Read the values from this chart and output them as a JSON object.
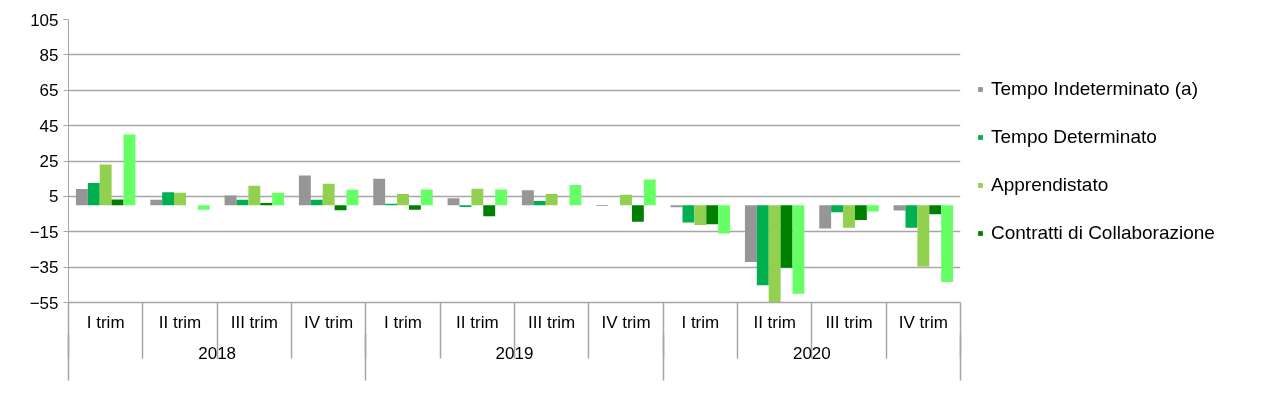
{
  "chart_data": {
    "type": "bar",
    "categories": [
      "I trim",
      "II trim",
      "III trim",
      "IV trim",
      "I trim",
      "II trim",
      "III trim",
      "IV trim",
      "I trim",
      "II trim",
      "III trim",
      "IV trim"
    ],
    "annotations": [
      "2018",
      "2019",
      "2020"
    ],
    "series": [
      {
        "name": "Tempo Indeterminato (a)",
        "color": "#969696",
        "values": [
          9.1,
          3.1,
          5.5,
          16.8,
          15,
          3.9,
          8.4,
          -0.5,
          -1.1,
          -32.1,
          -13.2,
          -3
        ]
      },
      {
        "name": "Tempo Determinato",
        "color": "#00b050",
        "values": [
          12.5,
          7.4,
          3.1,
          3.1,
          0.9,
          -1,
          2.4,
          null,
          -9.7,
          -45.3,
          -4,
          -12.8
        ]
      },
      {
        "name": "Apprendistato",
        "color": "#92d050",
        "values": [
          23,
          7,
          11,
          12.1,
          6.3,
          9.3,
          6.3,
          5.9,
          -11.2,
          -55,
          -12.8,
          -34.6
        ]
      },
      {
        "name": "Contratti di Collaborazione",
        "color": "#008000",
        "values": [
          3.3,
          0,
          1.2,
          -2.9,
          -2.5,
          -6.3,
          null,
          -9.4,
          -10.8,
          -35.3,
          -8.3,
          -5.1
        ]
      },
      {
        "name": null,
        "color": "#66ff66",
        "values": [
          40,
          -2.5,
          7,
          8.7,
          8.9,
          8.9,
          11.4,
          14.6,
          -16,
          -50,
          -3.6,
          -43.4
        ]
      }
    ],
    "ylim": [
      -55,
      105
    ],
    "yticks": [
      -55,
      -35,
      -15,
      5,
      25,
      45,
      65,
      85,
      105
    ],
    "grid": "y",
    "legend": "right"
  }
}
